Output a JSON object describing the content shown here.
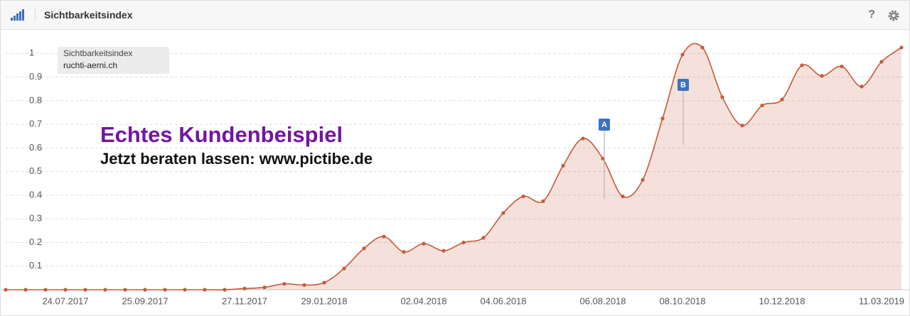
{
  "header": {
    "title": "Sichtbarkeitsindex",
    "help": "?"
  },
  "chart_data": {
    "type": "line",
    "legend": {
      "title": "Sichtbarkeitsindex",
      "position": "upper left"
    },
    "headline": "Echtes Kundenbeispiel",
    "subline": "Jetzt beraten lassen: www.pictibe.de",
    "annotations": [
      "A",
      "B"
    ],
    "categories": [
      null,
      null,
      null,
      "24.07.2017",
      null,
      null,
      null,
      "25.09.2017",
      null,
      null,
      null,
      null,
      "27.11.2017",
      null,
      null,
      null,
      "29.01.2018",
      null,
      null,
      null,
      null,
      "02.04.2018",
      null,
      null,
      null,
      "04.06.2018",
      null,
      null,
      null,
      null,
      "06.08.2018",
      null,
      null,
      null,
      "08.10.2018",
      null,
      null,
      null,
      null,
      "10.12.2018",
      null,
      null,
      null,
      null,
      "11.03.2019",
      null
    ],
    "series": [
      {
        "name": "ruchti-aerni.ch",
        "color": "#c65a38",
        "values": [
          0,
          0,
          0,
          0,
          0,
          0,
          0,
          0,
          0,
          0,
          0,
          0,
          0.005,
          0.01,
          0.025,
          0.02,
          0.03,
          0.09,
          0.175,
          0.225,
          0.16,
          0.195,
          0.165,
          0.2,
          0.22,
          0.325,
          0.395,
          0.375,
          0.525,
          0.64,
          0.555,
          0.395,
          0.465,
          0.725,
          0.995,
          1.025,
          0.815,
          0.695,
          0.78,
          0.805,
          0.95,
          0.905,
          0.945,
          0.86,
          0.965,
          1.025
        ]
      }
    ],
    "ylim": [
      0,
      1.1
    ],
    "yticks": [
      0.1,
      0.2,
      0.3,
      0.4,
      0.5,
      0.6,
      0.7,
      0.8,
      0.9,
      1
    ],
    "grid": true
  }
}
